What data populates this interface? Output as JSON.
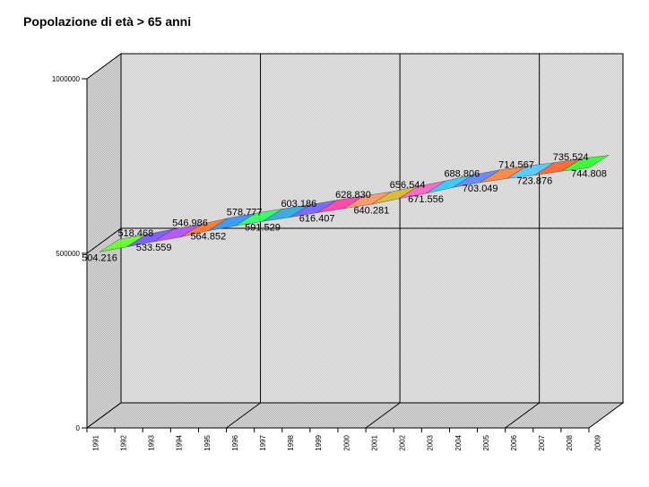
{
  "chart_data": {
    "type": "area",
    "title": "Popolazione di età > 65 anni",
    "xlabel": "",
    "ylabel": "",
    "ylim": [
      0,
      1000000
    ],
    "yticks": [
      0,
      500000,
      1000000
    ],
    "yticklabels": [
      "0",
      "500000",
      "1000000"
    ],
    "grid": true,
    "three_d": true,
    "categories": [
      "1991",
      "1992",
      "1993",
      "1994",
      "1995",
      "1996",
      "1997",
      "1998",
      "1999",
      "2000",
      "2001",
      "2002",
      "2003",
      "2004",
      "2005",
      "2006",
      "2007",
      "2008",
      "2009"
    ],
    "series": [
      {
        "values": [
          504216,
          518468,
          533559,
          546986,
          564852,
          578777,
          591529,
          603186,
          616407,
          628830,
          640281,
          656544,
          671556,
          688806,
          703049,
          714567,
          723876,
          735524,
          744808
        ],
        "labels": [
          "504.216",
          "518.468",
          "533.559",
          "546.986",
          "564.852",
          "578.777",
          "591.529",
          "603.186",
          "616.407",
          "628.830",
          "640.281",
          "656.544",
          "671.556",
          "688.806",
          "703.049",
          "714.567",
          "723.876",
          "735.524",
          "744.808"
        ]
      }
    ],
    "segment_colors": [
      "#66ff33",
      "#7a5cff",
      "#b455ff",
      "#ff7a33",
      "#3399ff",
      "#33ff66",
      "#33aadd",
      "#7766ff",
      "#ff44aa",
      "#ff9966",
      "#ddbb33",
      "#ff66cc",
      "#33ccff",
      "#6688ff",
      "#ff8844",
      "#55ccff",
      "#ff6633",
      "#33ff33",
      "#cc55ff"
    ]
  }
}
